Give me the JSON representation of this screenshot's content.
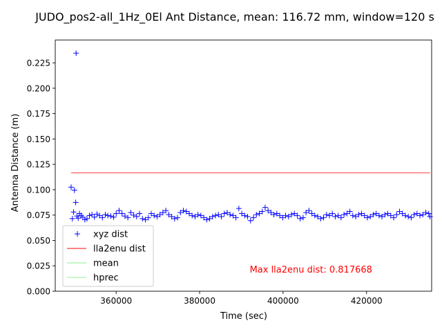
{
  "chart_data": {
    "type": "scatter",
    "title": "JUDO_pos2-all_1Hz_0El Ant Distance, mean: 116.72 mm, window=120 s",
    "xlabel": "Time (sec)",
    "ylabel": "Antenna Distance (m)",
    "xlim": [
      345400,
      435600
    ],
    "ylim": [
      0.0,
      0.2475
    ],
    "x_ticks": [
      360000,
      380000,
      400000,
      420000
    ],
    "x_tick_labels": [
      "360000",
      "380000",
      "400000",
      "420000"
    ],
    "y_ticks": [
      0.0,
      0.025,
      0.05,
      0.075,
      0.1,
      0.125,
      0.15,
      0.175,
      0.2,
      0.225
    ],
    "y_tick_labels": [
      "0.000",
      "0.025",
      "0.050",
      "0.075",
      "0.100",
      "0.125",
      "0.150",
      "0.175",
      "0.200",
      "0.225"
    ],
    "grid": false,
    "legend_position": "lower-left",
    "annotation": {
      "text": "Max lla2enu dist: 0.817668",
      "x": 392000,
      "y": 0.0215,
      "color": "#ff0000"
    },
    "series": [
      {
        "name": "xyz dist",
        "kind": "scatter",
        "marker": "+",
        "color": "#0000ff",
        "x": [
          349200,
          349500,
          349800,
          350000,
          350300,
          350400,
          350600,
          350900,
          351200,
          351600,
          352000,
          352500,
          353000,
          353600,
          354200,
          354800,
          355400,
          356000,
          356700,
          357400,
          358000,
          358700,
          359400,
          360000,
          360700,
          361400,
          362100,
          362800,
          363500,
          364200,
          364900,
          365600,
          366300,
          367000,
          367700,
          368400,
          369100,
          369800,
          370500,
          371200,
          371900,
          372600,
          373300,
          374000,
          374700,
          375400,
          376100,
          376800,
          377500,
          378200,
          378900,
          379600,
          380300,
          381000,
          381700,
          382400,
          383100,
          383800,
          384500,
          385200,
          385900,
          386600,
          387300,
          388000,
          388700,
          389400,
          390100,
          390800,
          391500,
          392200,
          392900,
          393600,
          394300,
          395000,
          395700,
          396400,
          397100,
          397800,
          398500,
          399200,
          399900,
          400600,
          401300,
          402000,
          402700,
          403400,
          404100,
          404800,
          405500,
          406200,
          406900,
          407600,
          408300,
          409000,
          409700,
          410400,
          411100,
          411800,
          412500,
          413200,
          413900,
          414600,
          415300,
          416000,
          416700,
          417400,
          418100,
          418800,
          419500,
          420200,
          420900,
          421600,
          422300,
          423000,
          423700,
          424400,
          425100,
          425800,
          426500,
          427200,
          427900,
          428600,
          429300,
          430000,
          430700,
          431400,
          432100,
          432800,
          433500,
          434200,
          434900,
          435200
        ],
        "y": [
          0.1025,
          0.0715,
          0.078,
          0.0995,
          0.0875,
          0.2345,
          0.074,
          0.072,
          0.0765,
          0.0745,
          0.073,
          0.0705,
          0.0715,
          0.0745,
          0.0755,
          0.073,
          0.076,
          0.0745,
          0.0725,
          0.0755,
          0.0745,
          0.074,
          0.073,
          0.0765,
          0.0795,
          0.0765,
          0.074,
          0.0725,
          0.0775,
          0.075,
          0.0735,
          0.0765,
          0.0715,
          0.0705,
          0.0725,
          0.0765,
          0.0745,
          0.0735,
          0.0755,
          0.0775,
          0.0795,
          0.0755,
          0.0735,
          0.0715,
          0.0725,
          0.0775,
          0.0795,
          0.0785,
          0.0765,
          0.0745,
          0.0735,
          0.0755,
          0.0745,
          0.0725,
          0.0705,
          0.0715,
          0.0735,
          0.0745,
          0.0755,
          0.0735,
          0.0765,
          0.0775,
          0.0755,
          0.0745,
          0.0725,
          0.0815,
          0.0765,
          0.0745,
          0.0735,
          0.0695,
          0.0725,
          0.0755,
          0.0765,
          0.0785,
          0.0825,
          0.0795,
          0.0775,
          0.0755,
          0.0765,
          0.0745,
          0.0725,
          0.0745,
          0.0735,
          0.0755,
          0.0765,
          0.0745,
          0.0715,
          0.0725,
          0.0775,
          0.0795,
          0.0765,
          0.0745,
          0.0735,
          0.0715,
          0.0725,
          0.0755,
          0.0745,
          0.0765,
          0.0735,
          0.0745,
          0.0725,
          0.0755,
          0.0765,
          0.0785,
          0.0745,
          0.0735,
          0.0755,
          0.0765,
          0.0745,
          0.0725,
          0.0735,
          0.0755,
          0.0765,
          0.0745,
          0.0735,
          0.0755,
          0.0765,
          0.0745,
          0.0725,
          0.0755,
          0.0785,
          0.0765,
          0.0745,
          0.0735,
          0.0725,
          0.0755,
          0.0765,
          0.0745,
          0.0755,
          0.0775,
          0.0765,
          0.0735
        ]
      },
      {
        "name": "lla2enu dist",
        "kind": "line",
        "color": "#ff0000",
        "x": [
          349200,
          435200
        ],
        "y": [
          0.11672,
          0.11672
        ]
      },
      {
        "name": "mean",
        "kind": "line",
        "color": "#90ee90",
        "x": [],
        "y": []
      },
      {
        "name": "hprec",
        "kind": "line",
        "color": "#90ee90",
        "x": [],
        "y": []
      }
    ]
  }
}
